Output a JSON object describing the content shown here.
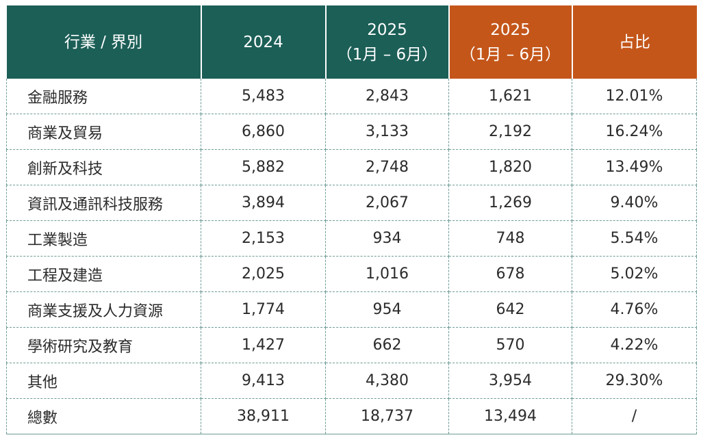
{
  "colors": {
    "header_green": "#1c5f57",
    "header_orange": "#c4561a",
    "grid": "#6c9a94"
  },
  "header": {
    "col1": "行業 / 界別",
    "col2": "2024",
    "col3_year": "2025",
    "col3_range": "（1月 – 6月）",
    "col4_year": "2025",
    "col4_range": "（1月 – 6月）",
    "col5": "占比"
  },
  "rows": [
    {
      "sector": "金融服務",
      "y2024": "5,483",
      "y2025a": "2,843",
      "y2025b": "1,621",
      "share": "12.01%"
    },
    {
      "sector": "商業及貿易",
      "y2024": "6,860",
      "y2025a": "3,133",
      "y2025b": "2,192",
      "share": "16.24%"
    },
    {
      "sector": "創新及科技",
      "y2024": "5,882",
      "y2025a": "2,748",
      "y2025b": "1,820",
      "share": "13.49%"
    },
    {
      "sector": "資訊及通訊科技服務",
      "y2024": "3,894",
      "y2025a": "2,067",
      "y2025b": "1,269",
      "share": "9.40%"
    },
    {
      "sector": "工業製造",
      "y2024": "2,153",
      "y2025a": "934",
      "y2025b": "748",
      "share": "5.54%"
    },
    {
      "sector": "工程及建造",
      "y2024": "2,025",
      "y2025a": "1,016",
      "y2025b": "678",
      "share": "5.02%"
    },
    {
      "sector": "商業支援及人力資源",
      "y2024": "1,774",
      "y2025a": "954",
      "y2025b": "642",
      "share": "4.76%"
    },
    {
      "sector": "學術研究及教育",
      "y2024": "1,427",
      "y2025a": "662",
      "y2025b": "570",
      "share": "4.22%"
    },
    {
      "sector": "其他",
      "y2024": "9,413",
      "y2025a": "4,380",
      "y2025b": "3,954",
      "share": "29.30%"
    },
    {
      "sector": "總數",
      "y2024": "38,911",
      "y2025a": "18,737",
      "y2025b": "13,494",
      "share": "/"
    }
  ]
}
